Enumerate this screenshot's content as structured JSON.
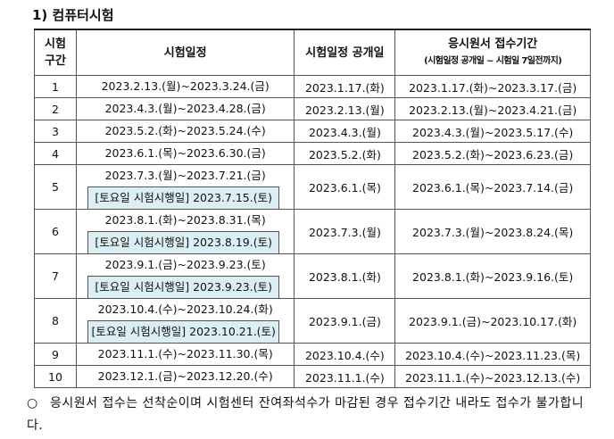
{
  "title": "1) 컴퓨터시험",
  "table": {
    "header": [
      [
        "시험",
        "구간"
      ],
      [
        "시험일정"
      ],
      [
        "시험일정 공개일"
      ],
      [
        "응시원서 접수기간",
        "(시험일정 공개일 ~ 시험일 7일전까지)"
      ]
    ],
    "rows": [
      {
        "no": "1",
        "schedule": "2023.2.13.(월)~2023.3.24.(금)",
        "open": "2023.1.17.(화)",
        "period": "2023.1.17.(화)~2023.3.17.(금)"
      },
      {
        "no": "2",
        "schedule": "2023.4.3.(월)~2023.4.28.(금)",
        "open": "2023.2.13.(월)",
        "period": "2023.2.13.(월)~2023.4.21.(금)"
      },
      {
        "no": "3",
        "schedule": "2023.5.2.(화)~2023.5.24.(수)",
        "open": "2023.4.3.(월)",
        "period": "2023.4.3.(월)~2023.5.17.(수)"
      },
      {
        "no": "4",
        "schedule": "2023.6.1.(목)~2023.6.30.(금)",
        "open": "2023.5.2.(화)",
        "period": "2023.5.2.(화)~2023.6.23.(금)"
      },
      {
        "no": "5",
        "schedule": "2023.7.3.(월)~2023.7.21.(금)",
        "saturday": "[토요일 시험시행일] 2023.7.15.(토)",
        "open": "2023.6.1.(목)",
        "period": "2023.6.1.(목)~2023.7.14.(금)"
      },
      {
        "no": "6",
        "schedule": "2023.8.1.(화)~2023.8.31.(목)",
        "saturday": "[토요일 시험시행일] 2023.8.19.(토)",
        "open": "2023.7.3.(월)",
        "period": "2023.7.3.(월)~2023.8.24.(목)"
      },
      {
        "no": "7",
        "schedule": "2023.9.1.(금)~2023.9.23.(토)",
        "saturday": "[토요일 시험시행일] 2023.9.23.(토)",
        "open": "2023.8.1.(화)",
        "period": "2023.8.1.(화)~2023.9.16.(토)"
      },
      {
        "no": "8",
        "schedule": "2023.10.4.(수)~2023.10.24.(화)",
        "saturday": "[토요일 시험시행일] 2023.10.21.(토)",
        "open": "2023.9.1.(금)",
        "period": "2023.9.1.(금)~2023.10.17.(화)"
      },
      {
        "no": "9",
        "schedule": "2023.11.1.(수)~2023.11.30.(목)",
        "open": "2023.10.4.(수)",
        "period": "2023.10.4.(수)~2023.11.23.(목)"
      },
      {
        "no": "10",
        "schedule": "2023.12.1.(금)~2023.12.20.(수)",
        "open": "2023.11.1.(수)",
        "period": "2023.11.1.(수)~2023.12.13.(수)"
      }
    ]
  },
  "note": {
    "bullet": "○",
    "text": "응시원서 접수는 선착순이며 시험센터 잔여좌석수가 마감된 경우 접수기간 내라도 접수가 불가합니다."
  }
}
